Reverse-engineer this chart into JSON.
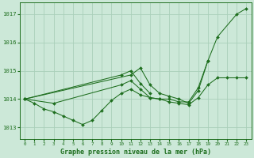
{
  "background_color": "#cce8d8",
  "grid_color": "#aacfba",
  "line_color": "#1e6e1e",
  "title": "Graphe pression niveau de la mer (hPa)",
  "ylim": [
    1012.6,
    1017.4
  ],
  "xlim": [
    -0.5,
    23.5
  ],
  "yticks": [
    1013,
    1014,
    1015,
    1016,
    1017
  ],
  "xticks": [
    0,
    1,
    2,
    3,
    4,
    5,
    6,
    7,
    8,
    9,
    10,
    11,
    12,
    13,
    14,
    15,
    16,
    17,
    18,
    19,
    20,
    21,
    22,
    23
  ],
  "series": [
    {
      "x": [
        0,
        1,
        2,
        3,
        4,
        5,
        6,
        7,
        8,
        9,
        10,
        11,
        12,
        13,
        14,
        15,
        16,
        17,
        18,
        19,
        20,
        21,
        22,
        23
      ],
      "y": [
        1014.0,
        1013.85,
        1013.65,
        1013.55,
        1013.4,
        1013.25,
        1013.1,
        1013.25,
        1013.6,
        1013.95,
        1014.2,
        1014.35,
        1014.15,
        1014.05,
        1014.0,
        1013.9,
        1013.85,
        1013.8,
        1014.05,
        1014.5,
        1014.75,
        1014.75,
        1014.75,
        1014.75
      ]
    },
    {
      "x": [
        0,
        3,
        10,
        11,
        12,
        13,
        14,
        15,
        16,
        17,
        18,
        19,
        20,
        22,
        23
      ],
      "y": [
        1014.0,
        1013.85,
        1014.5,
        1014.65,
        1014.35,
        1014.05,
        1014.0,
        1014.0,
        1013.9,
        1013.9,
        1014.4,
        1015.35,
        1016.2,
        1017.0,
        1017.2
      ]
    },
    {
      "x": [
        0,
        10,
        11,
        12,
        13
      ],
      "y": [
        1014.0,
        1014.85,
        1015.0,
        1014.55,
        1014.2
      ]
    },
    {
      "x": [
        0,
        11,
        12,
        13,
        14,
        15,
        16,
        17,
        18,
        19
      ],
      "y": [
        1014.0,
        1014.85,
        1015.1,
        1014.5,
        1014.2,
        1014.1,
        1014.0,
        1013.85,
        1014.3,
        1015.35
      ]
    }
  ]
}
